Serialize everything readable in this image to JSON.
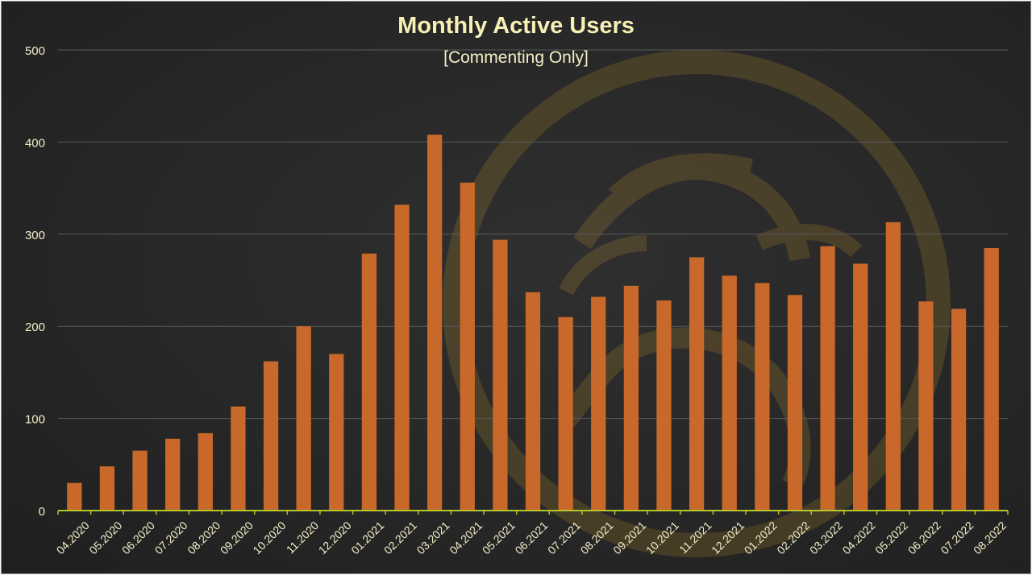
{
  "colors": {
    "bar": "#c8682a",
    "axis": "#b5c52c",
    "grid": "#5a5a5a",
    "text": "#f3eec7",
    "title": "#f6f0b4",
    "watermark": "#c99a2e"
  },
  "watermark_icon": "lion-logo-icon",
  "chart_data": {
    "type": "bar",
    "title": "Monthly Active Users",
    "subtitle": "[Commenting Only]",
    "xlabel": "",
    "ylabel": "",
    "ylim": [
      0,
      500
    ],
    "yticks": [
      0,
      100,
      200,
      300,
      400,
      500
    ],
    "grid": true,
    "legend": "none",
    "categories": [
      "04.2020",
      "05.2020",
      "06.2020",
      "07.2020",
      "08.2020",
      "09.2020",
      "10.2020",
      "11.2020",
      "12.2020",
      "01.2021",
      "02.2021",
      "03.2021",
      "04.2021",
      "05.2021",
      "06.2021",
      "07.2021",
      "08.2021",
      "09.2021",
      "10.2021",
      "11.2021",
      "12.2021",
      "01.2022",
      "02.2022",
      "03.2022",
      "04.2022",
      "05.2022",
      "06.2022",
      "07.2022",
      "08.2022"
    ],
    "values": [
      30,
      48,
      65,
      78,
      84,
      113,
      162,
      200,
      170,
      279,
      332,
      408,
      356,
      294,
      237,
      210,
      232,
      244,
      228,
      275,
      255,
      247,
      234,
      287,
      268,
      313,
      227,
      219,
      285
    ]
  }
}
